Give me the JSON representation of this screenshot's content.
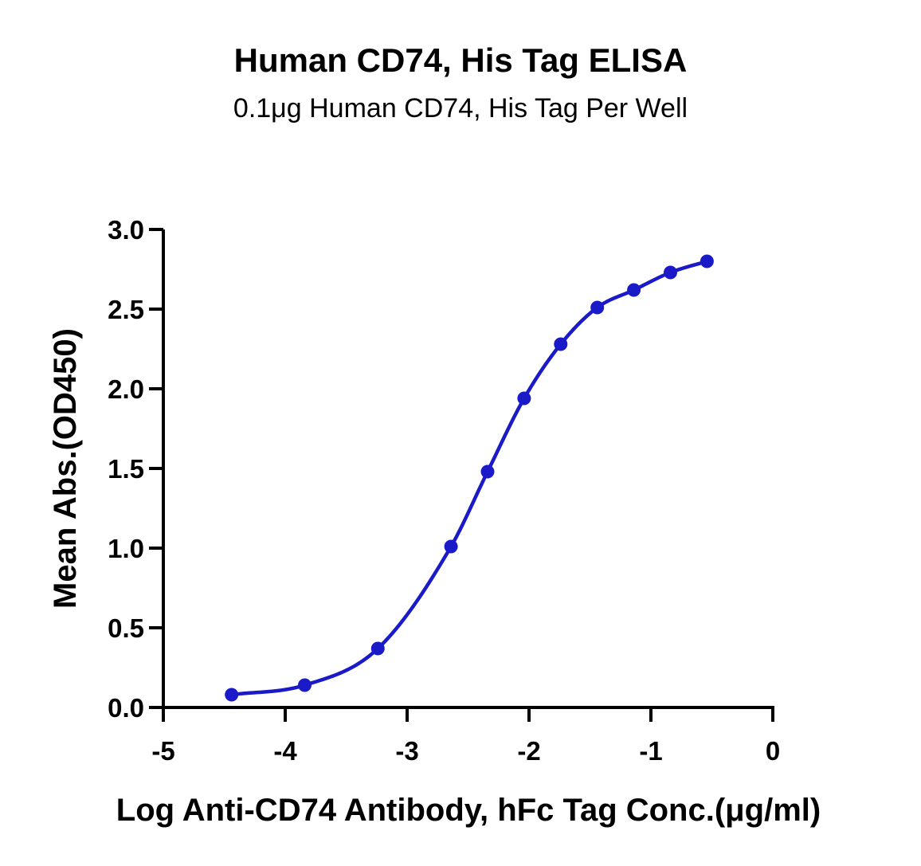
{
  "chart_data": {
    "type": "scatter",
    "title": "Human CD74, His Tag ELISA",
    "subtitle": "0.1μg Human CD74, His Tag Per Well",
    "xlabel": "Log Anti-CD74 Antibody, hFc Tag Conc.(μg/ml)",
    "ylabel": "Mean Abs.(OD450)",
    "xlim": [
      -5,
      0
    ],
    "ylim": [
      0,
      3.0
    ],
    "x_ticks": [
      -5,
      -4,
      -3,
      -2,
      -1,
      0
    ],
    "x_tick_labels": [
      "-5",
      "-4",
      "-3",
      "-2",
      "-1",
      "0"
    ],
    "y_ticks": [
      0,
      0.5,
      1.0,
      1.5,
      2.0,
      2.5,
      3.0
    ],
    "y_tick_labels": [
      "0.0",
      "0.5",
      "1.0",
      "1.5",
      "2.0",
      "2.5",
      "3.0"
    ],
    "grid": false,
    "color": "#1a1ac8",
    "series": [
      {
        "x": [
          -4.44,
          -3.84,
          -3.24,
          -2.64,
          -2.34,
          -2.04,
          -1.74,
          -1.44,
          -1.14,
          -0.84,
          -0.54
        ],
        "y": [
          0.08,
          0.14,
          0.37,
          1.01,
          1.48,
          1.94,
          2.28,
          2.51,
          2.62,
          2.73,
          2.8
        ],
        "fit": "sigmoidal"
      }
    ]
  }
}
